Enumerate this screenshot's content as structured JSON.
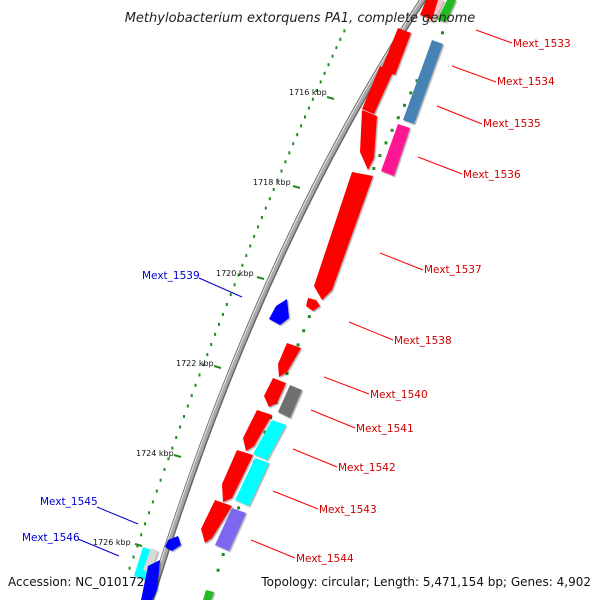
{
  "title": "Methylobacterium extorquens PA1, complete genome",
  "footer": {
    "accession": "Accession: NC_010172",
    "summary": "Topology: circular; Length: 5,471,154 bp; Genes: 4,902"
  },
  "ticks": [
    "1716 kbp",
    "1718 kbp",
    "1720 kbp",
    "1722 kbp",
    "1724 kbp",
    "1726 kbp"
  ],
  "genes": [
    {
      "id": "Mext_1533",
      "strand": "reverse",
      "color": "#ff0000"
    },
    {
      "id": "Mext_1534",
      "strand": "reverse",
      "color": "#ff0000"
    },
    {
      "id": "Mext_1535",
      "strand": "reverse",
      "color": "#ff0000"
    },
    {
      "id": "Mext_1536",
      "strand": "reverse",
      "color": "#ff0000"
    },
    {
      "id": "Mext_1537",
      "strand": "reverse",
      "color": "#ff0000"
    },
    {
      "id": "Mext_1538",
      "strand": "reverse",
      "color": "#ff0000"
    },
    {
      "id": "Mext_1539",
      "strand": "forward",
      "color": "#0000cc"
    },
    {
      "id": "Mext_1540",
      "strand": "reverse",
      "color": "#ff0000"
    },
    {
      "id": "Mext_1541",
      "strand": "reverse",
      "color": "#ff0000"
    },
    {
      "id": "Mext_1542",
      "strand": "reverse",
      "color": "#ff0000"
    },
    {
      "id": "Mext_1543",
      "strand": "reverse",
      "color": "#ff0000"
    },
    {
      "id": "Mext_1544",
      "strand": "reverse",
      "color": "#ff0000"
    },
    {
      "id": "Mext_1545",
      "strand": "forward",
      "color": "#0000cc"
    },
    {
      "id": "Mext_1546",
      "strand": "forward",
      "color": "#0000cc"
    }
  ],
  "colors": {
    "gene_red": "#ff0000",
    "gene_blue": "#0000ff",
    "cog_green": "#22bb22",
    "cog_steelblue": "#4682b4",
    "cog_pink": "#ff1493",
    "cog_cyan": "#00ffff",
    "cog_gray": "#707070",
    "cog_slate": "#7b68ee",
    "backbone": "#888888",
    "dots": "#228b22"
  }
}
